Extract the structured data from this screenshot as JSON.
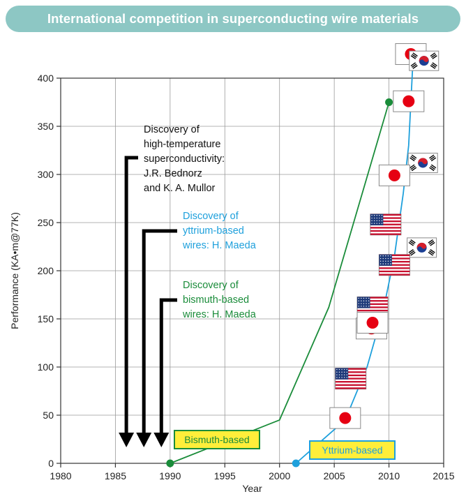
{
  "banner": {
    "title": "International competition in superconducting wire materials"
  },
  "chart_data": {
    "type": "line",
    "title": "International competition in superconducting wire materials",
    "xlabel": "Year",
    "ylabel": "Performance (KA•m@77K)",
    "xlim": [
      1980,
      2015
    ],
    "ylim": [
      0,
      400
    ],
    "xticks": [
      1980,
      1985,
      1990,
      1995,
      2000,
      2005,
      2010,
      2015
    ],
    "yticks": [
      0,
      50,
      100,
      150,
      200,
      250,
      300,
      350,
      400
    ],
    "grid": true,
    "series": [
      {
        "name": "Bismuth-based",
        "color": "#1a8c3a",
        "points": [
          [
            1990,
            0
          ],
          [
            2000,
            45
          ],
          [
            2004.5,
            162
          ],
          [
            2010,
            375
          ]
        ]
      },
      {
        "name": "Yttrium-based",
        "color": "#1ea0dc",
        "points": [
          [
            2001.5,
            0
          ],
          [
            2006,
            45
          ],
          [
            2008,
            100
          ],
          [
            2009.5,
            160
          ],
          [
            2010.5,
            215
          ],
          [
            2011.3,
            280
          ],
          [
            2011.8,
            330
          ],
          [
            2012.2,
            420
          ]
        ]
      }
    ],
    "annotations": [
      {
        "year": 1986,
        "color": "#111111",
        "lines": [
          "Discovery of",
          "high-temperature",
          "superconductivity:",
          "J.R. Bednorz",
          "and K. A. Mullor"
        ]
      },
      {
        "year": 1987.6,
        "color": "#1ea0dc",
        "lines": [
          "Discovery of",
          "yttrium-based",
          "wires: H. Maeda"
        ]
      },
      {
        "year": 1989.2,
        "color": "#1a8c3a",
        "lines": [
          "Discovery of",
          "bismuth-based",
          "wires: H. Maeda"
        ]
      }
    ],
    "flags": [
      {
        "country": "Japan",
        "year": 2012,
        "value": 425
      },
      {
        "country": "Korea",
        "year": 2013.2,
        "value": 418
      },
      {
        "country": "Japan",
        "year": 2011.8,
        "value": 376
      },
      {
        "country": "Korea",
        "year": 2013.1,
        "value": 312
      },
      {
        "country": "Japan",
        "year": 2010.5,
        "value": 299
      },
      {
        "country": "USA",
        "year": 2009.7,
        "value": 248
      },
      {
        "country": "Korea",
        "year": 2013,
        "value": 224
      },
      {
        "country": "USA",
        "year": 2010.5,
        "value": 206
      },
      {
        "country": "USA",
        "year": 2008.5,
        "value": 162
      },
      {
        "country": "Japan",
        "year": 2008.4,
        "value": 140
      },
      {
        "country": "Japan",
        "year": 2008.5,
        "value": 146
      },
      {
        "country": "USA",
        "year": 2006.5,
        "value": 88
      },
      {
        "country": "Japan",
        "year": 2006,
        "value": 47
      }
    ]
  }
}
